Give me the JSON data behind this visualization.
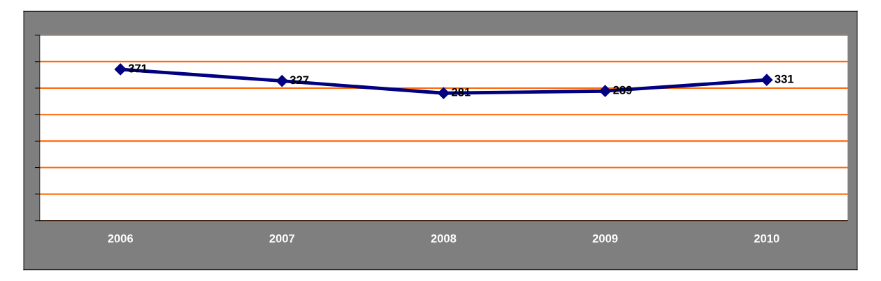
{
  "chart_data": {
    "type": "line",
    "categories": [
      "2006",
      "2007",
      "2008",
      "2009",
      "2010"
    ],
    "series": [
      {
        "color": "#000080",
        "values": [
          371,
          327,
          281,
          289,
          331
        ]
      }
    ],
    "ylim": [
      -200,
      500
    ],
    "yticks": [
      {
        "value": -200,
        "label": null
      },
      {
        "value": -100,
        "label": null
      },
      {
        "value": 0,
        "label": null
      },
      {
        "value": 100,
        "label": null
      },
      {
        "value": 200,
        "label": null
      },
      {
        "value": 300,
        "label": null
      },
      {
        "value": 400,
        "label": null
      },
      {
        "value": 500,
        "label": null
      }
    ],
    "grid": "y",
    "marker": "diamond",
    "line_style": "solid",
    "data_labels": true
  }
}
